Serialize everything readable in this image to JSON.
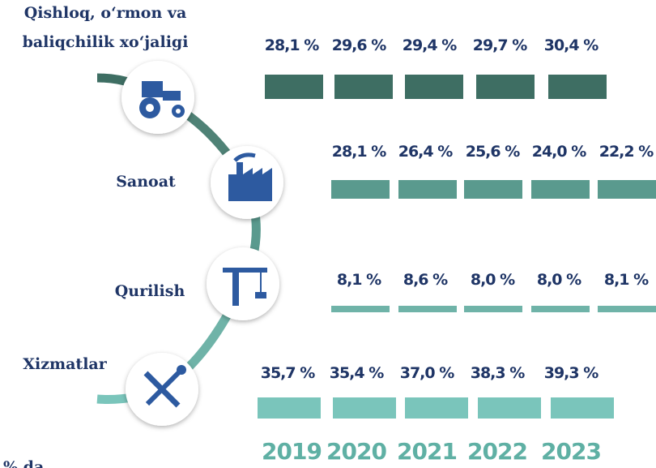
{
  "legend_note": "% da",
  "years": [
    "2019",
    "2020",
    "2021",
    "2022",
    "2023"
  ],
  "sectors": [
    {
      "name_lines": [
        "Qishloq, o‘rmon va",
        "baliqchilik xo‘jaligi"
      ],
      "values": [
        "28,1 %",
        "29,6 %",
        "29,4 %",
        "29,7 %",
        "30,4 %"
      ]
    },
    {
      "name_lines": [
        "Sanoat"
      ],
      "values": [
        "28,1 %",
        "26,4 %",
        "25,6 %",
        "24,0 %",
        "22,2 %"
      ]
    },
    {
      "name_lines": [
        "Qurilish"
      ],
      "values": [
        "8,1 %",
        "8,6 %",
        "8,0 %",
        "8,0 %",
        "8,1 %"
      ]
    },
    {
      "name_lines": [
        "Xizmatlar"
      ],
      "values": [
        "35,7 %",
        "35,4 %",
        "37,0 %",
        "38,3 %",
        "39,3 %"
      ]
    }
  ]
}
